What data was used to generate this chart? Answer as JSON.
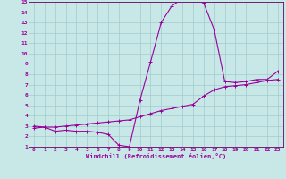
{
  "xlabel": "Windchill (Refroidissement éolien,°C)",
  "bg_color": "#c8e8e8",
  "grid_color": "#a0cccc",
  "line_color": "#990099",
  "spine_color": "#660066",
  "xlim": [
    -0.5,
    23.5
  ],
  "ylim": [
    1,
    15
  ],
  "xticks": [
    0,
    1,
    2,
    3,
    4,
    5,
    6,
    7,
    8,
    9,
    10,
    11,
    12,
    13,
    14,
    15,
    16,
    17,
    18,
    19,
    20,
    21,
    22,
    23
  ],
  "yticks": [
    1,
    2,
    3,
    4,
    5,
    6,
    7,
    8,
    9,
    10,
    11,
    12,
    13,
    14,
    15
  ],
  "curve1_x": [
    0,
    1,
    2,
    3,
    4,
    5,
    6,
    7,
    8,
    9,
    10,
    11,
    12,
    13,
    14,
    15,
    16,
    17,
    18,
    19,
    20,
    21,
    22,
    23
  ],
  "curve1_y": [
    3.0,
    2.9,
    2.5,
    2.6,
    2.5,
    2.5,
    2.4,
    2.2,
    1.15,
    1.0,
    5.5,
    9.2,
    13.0,
    14.6,
    15.3,
    15.2,
    14.9,
    12.3,
    7.3,
    7.2,
    7.3,
    7.5,
    7.5,
    8.3
  ],
  "curve2_x": [
    0,
    1,
    2,
    3,
    4,
    5,
    6,
    7,
    8,
    9,
    10,
    11,
    12,
    13,
    14,
    15,
    16,
    17,
    18,
    19,
    20,
    21,
    22,
    23
  ],
  "curve2_y": [
    2.8,
    2.9,
    2.9,
    3.0,
    3.1,
    3.2,
    3.3,
    3.4,
    3.5,
    3.6,
    3.9,
    4.2,
    4.5,
    4.7,
    4.9,
    5.1,
    5.9,
    6.5,
    6.8,
    6.9,
    7.0,
    7.2,
    7.4,
    7.5
  ],
  "tick_fontsize": 4.5,
  "xlabel_fontsize": 5.0
}
